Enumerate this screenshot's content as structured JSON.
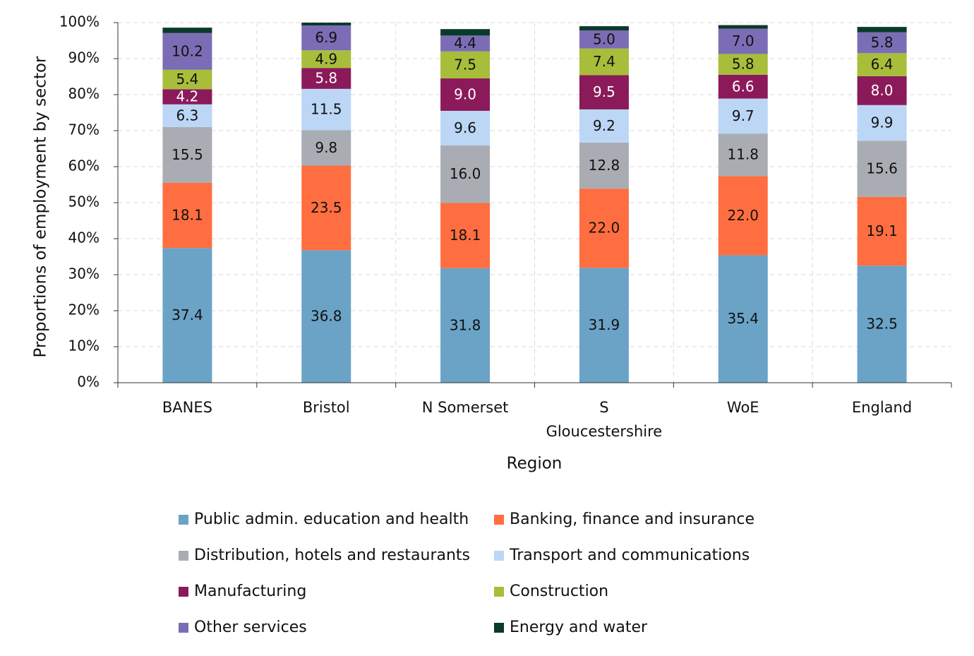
{
  "chart_data": {
    "type": "stacked_bar",
    "y_label": "Proportions of employment by sector",
    "x_label": "Region",
    "categories": [
      "BANES",
      "Bristol",
      "N Somerset",
      "S Gloucestershire",
      "WoE",
      "England"
    ],
    "ylim": [
      0,
      100
    ],
    "yticks": [
      {
        "value": 0,
        "label": "0%"
      },
      {
        "value": 10,
        "label": "10%"
      },
      {
        "value": 20,
        "label": "20%"
      },
      {
        "value": 30,
        "label": "30%"
      },
      {
        "value": 40,
        "label": "40%"
      },
      {
        "value": 50,
        "label": "50%"
      },
      {
        "value": 60,
        "label": "60%"
      },
      {
        "value": 70,
        "label": "70%"
      },
      {
        "value": 80,
        "label": "80%"
      },
      {
        "value": 90,
        "label": "90%"
      },
      {
        "value": 100,
        "label": "100%"
      }
    ],
    "grid": true,
    "series": [
      {
        "name": "Public admin. education and health",
        "color": "#6aa3c6",
        "label_color": "#111111",
        "values": [
          37.4,
          36.8,
          31.8,
          31.9,
          35.4,
          32.5
        ],
        "value_labels": [
          "37.4",
          "36.8",
          "31.8",
          "31.9",
          "35.4",
          "32.5"
        ]
      },
      {
        "name": "Banking, finance and insurance",
        "color": "#ff6e40",
        "label_color": "#111111",
        "values": [
          18.1,
          23.5,
          18.1,
          22.0,
          22.0,
          19.1
        ],
        "value_labels": [
          "18.1",
          "23.5",
          "18.1",
          "22.0",
          "22.0",
          "19.1"
        ]
      },
      {
        "name": "Distribution, hotels and restaurants",
        "color": "#a9adb3",
        "label_color": "#111111",
        "values": [
          15.5,
          9.8,
          16.0,
          12.8,
          11.8,
          15.6
        ],
        "value_labels": [
          "15.5",
          "9.8",
          "16.0",
          "12.8",
          "11.8",
          "15.6"
        ]
      },
      {
        "name": "Transport and communications",
        "color": "#bcd6f5",
        "label_color": "#111111",
        "values": [
          6.3,
          11.5,
          9.6,
          9.2,
          9.7,
          9.9
        ],
        "value_labels": [
          "6.3",
          "11.5",
          "9.6",
          "9.2",
          "9.7",
          "9.9"
        ]
      },
      {
        "name": "Manufacturing",
        "color": "#8b1a5a",
        "label_color": "#ffffff",
        "values": [
          4.2,
          5.8,
          9.0,
          9.5,
          6.6,
          8.0
        ],
        "value_labels": [
          "4.2",
          "5.8",
          "9.0",
          "9.5",
          "6.6",
          "8.0"
        ]
      },
      {
        "name": "Construction",
        "color": "#a8bd3a",
        "label_color": "#111111",
        "values": [
          5.4,
          4.9,
          7.5,
          7.4,
          5.8,
          6.4
        ],
        "value_labels": [
          "5.4",
          "4.9",
          "7.5",
          "7.4",
          "5.8",
          "6.4"
        ]
      },
      {
        "name": "Other services",
        "color": "#7b6db5",
        "label_color": "#111111",
        "values": [
          10.2,
          6.9,
          4.4,
          5.0,
          7.0,
          5.8
        ],
        "value_labels": [
          "10.2",
          "6.9",
          "4.4",
          "5.0",
          "7.0",
          "5.8"
        ]
      },
      {
        "name": "Energy and water",
        "color": "#0a3a2a",
        "values": [
          1.5,
          0.8,
          1.8,
          1.2,
          1.0,
          1.5
        ]
      }
    ]
  }
}
